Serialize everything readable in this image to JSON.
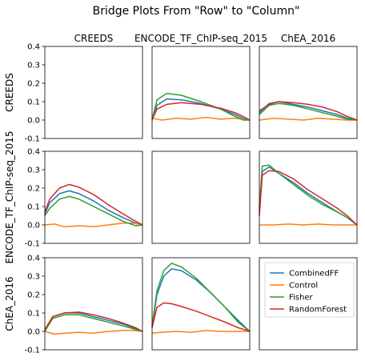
{
  "chart_data": {
    "type": "line",
    "title": "Bridge Plots From \"Row\" to \"Column\"",
    "columns": [
      "CREEDS",
      "ENCODE_TF_ChIP-seq_2015",
      "ChEA_2016"
    ],
    "rows": [
      "CREEDS",
      "ENCODE_TF_ChIP-seq_2015",
      "ChEA_2016"
    ],
    "ylim": [
      -0.1,
      0.4
    ],
    "yticks": [
      "0.4",
      "0.3",
      "0.2",
      "0.1",
      "0.0",
      "-0.1"
    ],
    "xlim": [
      0,
      1
    ],
    "grid": false,
    "legend": {
      "placement": "panel row 3, column 3",
      "entries": [
        "CombinedFF",
        "Control",
        "Fisher",
        "RandomForest"
      ]
    },
    "series_colors": {
      "CombinedFF": "#1f77b4",
      "Control": "#ff7f0e",
      "Fisher": "#2ca02c",
      "RandomForest": "#d62728"
    },
    "panels": [
      {
        "row": 0,
        "col": 0,
        "empty": true
      },
      {
        "row": 0,
        "col": 1,
        "series": [
          {
            "name": "CombinedFF",
            "x": [
              0,
              0.05,
              0.15,
              0.3,
              0.5,
              0.7,
              0.85,
              0.93,
              1.0
            ],
            "y": [
              0.0,
              0.08,
              0.115,
              0.11,
              0.09,
              0.06,
              0.03,
              0.01,
              0.0
            ]
          },
          {
            "name": "Control",
            "x": [
              0,
              0.1,
              0.25,
              0.4,
              0.55,
              0.7,
              0.85,
              1.0
            ],
            "y": [
              0.01,
              0.0,
              0.01,
              0.005,
              0.015,
              0.005,
              0.01,
              0.0
            ]
          },
          {
            "name": "Fisher",
            "x": [
              0,
              0.05,
              0.15,
              0.3,
              0.5,
              0.7,
              0.85,
              0.93,
              1.0
            ],
            "y": [
              0.0,
              0.11,
              0.145,
              0.135,
              0.1,
              0.06,
              0.02,
              0.0,
              0.0
            ]
          },
          {
            "name": "RandomForest",
            "x": [
              0,
              0.05,
              0.15,
              0.3,
              0.5,
              0.7,
              0.85,
              0.93,
              1.0
            ],
            "y": [
              0.0,
              0.06,
              0.085,
              0.095,
              0.085,
              0.065,
              0.04,
              0.02,
              0.0
            ]
          }
        ]
      },
      {
        "row": 0,
        "col": 2,
        "series": [
          {
            "name": "CombinedFF",
            "x": [
              0,
              0.1,
              0.2,
              0.35,
              0.5,
              0.65,
              0.8,
              0.9,
              1.0
            ],
            "y": [
              0.04,
              0.09,
              0.1,
              0.085,
              0.07,
              0.05,
              0.03,
              0.01,
              0.0
            ]
          },
          {
            "name": "Control",
            "x": [
              0,
              0.15,
              0.3,
              0.45,
              0.6,
              0.75,
              0.9,
              1.0
            ],
            "y": [
              0.0,
              0.01,
              0.005,
              0.0,
              0.01,
              0.005,
              0.0,
              0.0
            ]
          },
          {
            "name": "Fisher",
            "x": [
              0,
              0.1,
              0.2,
              0.35,
              0.5,
              0.65,
              0.8,
              0.9,
              1.0
            ],
            "y": [
              0.03,
              0.08,
              0.09,
              0.08,
              0.06,
              0.04,
              0.02,
              0.005,
              0.0
            ]
          },
          {
            "name": "RandomForest",
            "x": [
              0,
              0.1,
              0.2,
              0.35,
              0.5,
              0.65,
              0.8,
              0.9,
              1.0
            ],
            "y": [
              0.05,
              0.085,
              0.1,
              0.095,
              0.085,
              0.07,
              0.045,
              0.02,
              0.0
            ]
          }
        ]
      },
      {
        "row": 1,
        "col": 0,
        "series": [
          {
            "name": "CombinedFF",
            "x": [
              0,
              0.05,
              0.15,
              0.25,
              0.35,
              0.5,
              0.65,
              0.8,
              0.93,
              1.0
            ],
            "y": [
              0.06,
              0.12,
              0.17,
              0.185,
              0.17,
              0.13,
              0.08,
              0.04,
              0.01,
              0.0
            ]
          },
          {
            "name": "Control",
            "x": [
              0,
              0.1,
              0.2,
              0.35,
              0.5,
              0.65,
              0.8,
              0.9,
              1.0
            ],
            "y": [
              0.0,
              0.005,
              -0.01,
              -0.005,
              -0.01,
              0.0,
              0.01,
              0.01,
              0.0
            ]
          },
          {
            "name": "Fisher",
            "x": [
              0,
              0.05,
              0.15,
              0.25,
              0.35,
              0.5,
              0.65,
              0.8,
              0.93,
              1.0
            ],
            "y": [
              0.05,
              0.09,
              0.14,
              0.155,
              0.14,
              0.1,
              0.06,
              0.02,
              -0.005,
              0.0
            ]
          },
          {
            "name": "RandomForest",
            "x": [
              0,
              0.05,
              0.15,
              0.25,
              0.35,
              0.5,
              0.65,
              0.8,
              0.93,
              1.0
            ],
            "y": [
              0.07,
              0.14,
              0.2,
              0.22,
              0.205,
              0.165,
              0.11,
              0.06,
              0.02,
              0.0
            ]
          }
        ]
      },
      {
        "row": 1,
        "col": 1,
        "empty": true
      },
      {
        "row": 1,
        "col": 2,
        "series": [
          {
            "name": "CombinedFF",
            "x": [
              0,
              0.03,
              0.1,
              0.2,
              0.35,
              0.5,
              0.65,
              0.8,
              0.9,
              1.0
            ],
            "y": [
              0.07,
              0.29,
              0.315,
              0.28,
              0.23,
              0.17,
              0.12,
              0.07,
              0.04,
              0.0
            ]
          },
          {
            "name": "Control",
            "x": [
              0,
              0.15,
              0.3,
              0.45,
              0.6,
              0.75,
              0.9,
              1.0
            ],
            "y": [
              0.0,
              0.0,
              0.005,
              0.0,
              0.005,
              0.0,
              0.0,
              0.0
            ]
          },
          {
            "name": "Fisher",
            "x": [
              0,
              0.03,
              0.1,
              0.2,
              0.35,
              0.5,
              0.65,
              0.8,
              0.9,
              1.0
            ],
            "y": [
              0.09,
              0.32,
              0.325,
              0.28,
              0.22,
              0.16,
              0.11,
              0.07,
              0.04,
              0.0
            ]
          },
          {
            "name": "RandomForest",
            "x": [
              0,
              0.03,
              0.1,
              0.2,
              0.35,
              0.5,
              0.65,
              0.8,
              0.9,
              1.0
            ],
            "y": [
              0.05,
              0.27,
              0.295,
              0.29,
              0.25,
              0.19,
              0.14,
              0.09,
              0.05,
              0.0
            ]
          }
        ]
      },
      {
        "row": 2,
        "col": 0,
        "series": [
          {
            "name": "CombinedFF",
            "x": [
              0,
              0.08,
              0.2,
              0.35,
              0.5,
              0.65,
              0.8,
              0.93,
              1.0
            ],
            "y": [
              0.0,
              0.08,
              0.1,
              0.1,
              0.08,
              0.06,
              0.04,
              0.015,
              0.0
            ]
          },
          {
            "name": "Control",
            "x": [
              0,
              0.1,
              0.2,
              0.35,
              0.5,
              0.65,
              0.8,
              0.9,
              1.0
            ],
            "y": [
              0.0,
              -0.015,
              -0.01,
              -0.005,
              -0.01,
              0.0,
              0.005,
              0.005,
              0.0
            ]
          },
          {
            "name": "Fisher",
            "x": [
              0,
              0.08,
              0.2,
              0.35,
              0.5,
              0.65,
              0.8,
              0.93,
              1.0
            ],
            "y": [
              0.0,
              0.07,
              0.09,
              0.09,
              0.07,
              0.05,
              0.03,
              0.01,
              0.0
            ]
          },
          {
            "name": "RandomForest",
            "x": [
              0,
              0.08,
              0.2,
              0.35,
              0.5,
              0.65,
              0.8,
              0.93,
              1.0
            ],
            "y": [
              0.01,
              0.08,
              0.1,
              0.105,
              0.09,
              0.07,
              0.045,
              0.02,
              0.0
            ]
          }
        ]
      },
      {
        "row": 2,
        "col": 1,
        "series": [
          {
            "name": "CombinedFF",
            "x": [
              0,
              0.05,
              0.12,
              0.2,
              0.3,
              0.45,
              0.6,
              0.75,
              0.88,
              1.0
            ],
            "y": [
              0.02,
              0.2,
              0.3,
              0.34,
              0.33,
              0.28,
              0.21,
              0.13,
              0.06,
              0.0
            ]
          },
          {
            "name": "Control",
            "x": [
              0,
              0.1,
              0.25,
              0.4,
              0.55,
              0.7,
              0.85,
              1.0
            ],
            "y": [
              -0.01,
              -0.005,
              0.0,
              -0.005,
              0.005,
              0.0,
              0.0,
              0.0
            ]
          },
          {
            "name": "Fisher",
            "x": [
              0,
              0.05,
              0.12,
              0.2,
              0.3,
              0.45,
              0.6,
              0.75,
              0.88,
              1.0
            ],
            "y": [
              0.03,
              0.22,
              0.33,
              0.37,
              0.35,
              0.29,
              0.21,
              0.13,
              0.05,
              0.0
            ]
          },
          {
            "name": "RandomForest",
            "x": [
              0,
              0.05,
              0.12,
              0.2,
              0.3,
              0.45,
              0.6,
              0.75,
              0.88,
              1.0
            ],
            "y": [
              0.02,
              0.13,
              0.155,
              0.15,
              0.135,
              0.11,
              0.08,
              0.05,
              0.02,
              0.0
            ]
          }
        ]
      },
      {
        "row": 2,
        "col": 2,
        "legend": true
      }
    ]
  }
}
